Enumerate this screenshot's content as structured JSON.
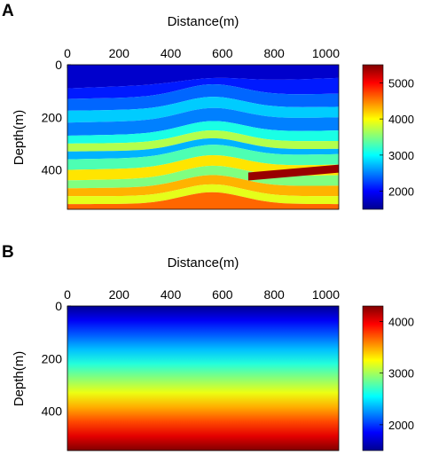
{
  "chart_data": [
    {
      "type": "heatmap",
      "panel_label": "A",
      "xlabel": "Distance(m)",
      "ylabel": "Depth(m)",
      "x_axis_position": "top",
      "xlim": [
        0,
        1050
      ],
      "ylim": [
        0,
        550
      ],
      "y_reversed": true,
      "x_ticks": [
        0,
        200,
        400,
        600,
        800,
        1000
      ],
      "y_ticks": [
        0,
        200,
        400
      ],
      "colormap": "jet",
      "color_range": [
        1500,
        5500
      ],
      "colorbar_ticks": [
        2000,
        3000,
        4000,
        5000
      ],
      "colorbar_position": "right",
      "description_field": "layered velocity model with folded/faulted strata",
      "layers": [
        {
          "depth_left": 0,
          "depth_right": 0,
          "value": 1800
        },
        {
          "depth_left": 90,
          "depth_right": 50,
          "value": 2100
        },
        {
          "depth_left": 130,
          "depth_right": 110,
          "value": 2400
        },
        {
          "depth_left": 175,
          "depth_right": 160,
          "value": 2800
        },
        {
          "depth_left": 220,
          "depth_right": 200,
          "value": 2500
        },
        {
          "depth_left": 270,
          "depth_right": 250,
          "value": 3100
        },
        {
          "depth_left": 300,
          "depth_right": 290,
          "value": 3700
        },
        {
          "depth_left": 330,
          "depth_right": 320,
          "value": 2700
        },
        {
          "depth_left": 360,
          "depth_right": 340,
          "value": 3300
        },
        {
          "depth_left": 400,
          "depth_right": 380,
          "value": 4100
        },
        {
          "depth_left": 440,
          "depth_right": 420,
          "value": 3500
        },
        {
          "depth_left": 470,
          "depth_right": 460,
          "value": 4300
        },
        {
          "depth_left": 500,
          "depth_right": 500,
          "value": 3900
        },
        {
          "depth_left": 530,
          "depth_right": 530,
          "value": 4600
        }
      ],
      "dipping_layer": {
        "x": [
          700,
          1050
        ],
        "depth": [
          410,
          380
        ],
        "value": 5400
      }
    },
    {
      "type": "heatmap",
      "panel_label": "B",
      "xlabel": "Distance(m)",
      "ylabel": "Depth(m)",
      "x_axis_position": "top",
      "xlim": [
        0,
        1050
      ],
      "ylim": [
        0,
        550
      ],
      "y_reversed": true,
      "x_ticks": [
        0,
        200,
        400,
        600,
        800,
        1000
      ],
      "y_ticks": [
        0,
        200,
        400
      ],
      "colormap": "jet",
      "color_range": [
        1500,
        4300
      ],
      "colorbar_ticks": [
        2000,
        3000,
        4000
      ],
      "colorbar_position": "right",
      "gradient": {
        "depth": [
          0,
          550
        ],
        "value": [
          1550,
          4300
        ]
      }
    }
  ]
}
